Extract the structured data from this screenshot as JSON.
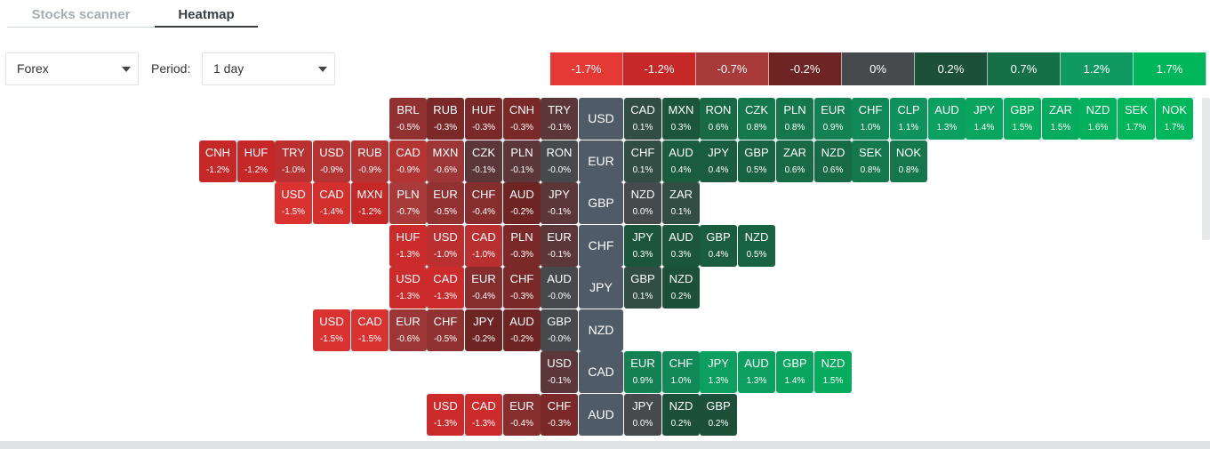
{
  "tabs": {
    "scanner": "Stocks scanner",
    "heatmap": "Heatmap"
  },
  "controls": {
    "market_value": "Forex",
    "period_label": "Period:",
    "period_value": "1 day"
  },
  "legend": [
    {
      "label": "-1.7%",
      "color": "#e53935"
    },
    {
      "label": "-1.2%",
      "color": "#c62828"
    },
    {
      "label": "-0.7%",
      "color": "#a83a3a"
    },
    {
      "label": "-0.2%",
      "color": "#6f2424"
    },
    {
      "label": "0%",
      "color": "#464a4d"
    },
    {
      "label": "0.2%",
      "color": "#1d5038"
    },
    {
      "label": "0.7%",
      "color": "#157047"
    },
    {
      "label": "1.2%",
      "color": "#0f9a62"
    },
    {
      "label": "1.7%",
      "color": "#00b65a"
    }
  ],
  "rows": [
    {
      "base": "USD",
      "neg": [
        {
          "c": "BRL",
          "p": "-0.5%"
        },
        {
          "c": "RUB",
          "p": "-0.3%"
        },
        {
          "c": "HUF",
          "p": "-0.3%"
        },
        {
          "c": "CNH",
          "p": "-0.3%"
        },
        {
          "c": "TRY",
          "p": "-0.1%"
        }
      ],
      "pos": [
        {
          "c": "CAD",
          "p": "0.1%"
        },
        {
          "c": "MXN",
          "p": "0.3%"
        },
        {
          "c": "RON",
          "p": "0.6%"
        },
        {
          "c": "CZK",
          "p": "0.8%"
        },
        {
          "c": "PLN",
          "p": "0.8%"
        },
        {
          "c": "EUR",
          "p": "0.9%"
        },
        {
          "c": "CHF",
          "p": "1.0%"
        },
        {
          "c": "CLP",
          "p": "1.1%"
        },
        {
          "c": "AUD",
          "p": "1.3%"
        },
        {
          "c": "JPY",
          "p": "1.4%"
        },
        {
          "c": "GBP",
          "p": "1.5%"
        },
        {
          "c": "ZAR",
          "p": "1.5%"
        },
        {
          "c": "NZD",
          "p": "1.6%"
        },
        {
          "c": "SEK",
          "p": "1.7%"
        },
        {
          "c": "NOK",
          "p": "1.7%"
        }
      ]
    },
    {
      "base": "EUR",
      "neg": [
        {
          "c": "CNH",
          "p": "-1.2%"
        },
        {
          "c": "HUF",
          "p": "-1.2%"
        },
        {
          "c": "TRY",
          "p": "-1.0%"
        },
        {
          "c": "USD",
          "p": "-0.9%"
        },
        {
          "c": "RUB",
          "p": "-0.9%"
        },
        {
          "c": "CAD",
          "p": "-0.9%"
        },
        {
          "c": "MXN",
          "p": "-0.6%"
        },
        {
          "c": "CZK",
          "p": "-0.1%"
        },
        {
          "c": "PLN",
          "p": "-0.1%"
        },
        {
          "c": "RON",
          "p": "-0.0%"
        }
      ],
      "pos": [
        {
          "c": "CHF",
          "p": "0.1%"
        },
        {
          "c": "AUD",
          "p": "0.4%"
        },
        {
          "c": "JPY",
          "p": "0.4%"
        },
        {
          "c": "GBP",
          "p": "0.5%"
        },
        {
          "c": "ZAR",
          "p": "0.6%"
        },
        {
          "c": "NZD",
          "p": "0.6%"
        },
        {
          "c": "SEK",
          "p": "0.8%"
        },
        {
          "c": "NOK",
          "p": "0.8%"
        }
      ]
    },
    {
      "base": "GBP",
      "neg": [
        {
          "c": "USD",
          "p": "-1.5%"
        },
        {
          "c": "CAD",
          "p": "-1.4%"
        },
        {
          "c": "MXN",
          "p": "-1.2%"
        },
        {
          "c": "PLN",
          "p": "-0.7%"
        },
        {
          "c": "EUR",
          "p": "-0.5%"
        },
        {
          "c": "CHF",
          "p": "-0.4%"
        },
        {
          "c": "AUD",
          "p": "-0.2%"
        },
        {
          "c": "JPY",
          "p": "-0.1%"
        }
      ],
      "pos": [
        {
          "c": "NZD",
          "p": "0.0%"
        },
        {
          "c": "ZAR",
          "p": "0.1%"
        }
      ]
    },
    {
      "base": "CHF",
      "neg": [
        {
          "c": "HUF",
          "p": "-1.3%"
        },
        {
          "c": "USD",
          "p": "-1.0%"
        },
        {
          "c": "CAD",
          "p": "-1.0%"
        },
        {
          "c": "PLN",
          "p": "-0.3%"
        },
        {
          "c": "EUR",
          "p": "-0.1%"
        }
      ],
      "pos": [
        {
          "c": "JPY",
          "p": "0.3%"
        },
        {
          "c": "AUD",
          "p": "0.3%"
        },
        {
          "c": "GBP",
          "p": "0.4%"
        },
        {
          "c": "NZD",
          "p": "0.5%"
        }
      ]
    },
    {
      "base": "JPY",
      "neg": [
        {
          "c": "USD",
          "p": "-1.3%"
        },
        {
          "c": "CAD",
          "p": "-1.3%"
        },
        {
          "c": "EUR",
          "p": "-0.4%"
        },
        {
          "c": "CHF",
          "p": "-0.3%"
        },
        {
          "c": "AUD",
          "p": "-0.0%"
        }
      ],
      "pos": [
        {
          "c": "GBP",
          "p": "0.1%"
        },
        {
          "c": "NZD",
          "p": "0.2%"
        }
      ]
    },
    {
      "base": "NZD",
      "neg": [
        {
          "c": "USD",
          "p": "-1.5%"
        },
        {
          "c": "CAD",
          "p": "-1.5%"
        },
        {
          "c": "EUR",
          "p": "-0.6%"
        },
        {
          "c": "CHF",
          "p": "-0.5%"
        },
        {
          "c": "JPY",
          "p": "-0.2%"
        },
        {
          "c": "AUD",
          "p": "-0.2%"
        },
        {
          "c": "GBP",
          "p": "-0.0%"
        }
      ],
      "pos": []
    },
    {
      "base": "CAD",
      "neg": [
        {
          "c": "USD",
          "p": "-0.1%"
        }
      ],
      "pos": [
        {
          "c": "EUR",
          "p": "0.9%"
        },
        {
          "c": "CHF",
          "p": "1.0%"
        },
        {
          "c": "JPY",
          "p": "1.3%"
        },
        {
          "c": "AUD",
          "p": "1.3%"
        },
        {
          "c": "GBP",
          "p": "1.4%"
        },
        {
          "c": "NZD",
          "p": "1.5%"
        }
      ]
    },
    {
      "base": "AUD",
      "neg": [
        {
          "c": "USD",
          "p": "-1.3%"
        },
        {
          "c": "CAD",
          "p": "-1.3%"
        },
        {
          "c": "EUR",
          "p": "-0.4%"
        },
        {
          "c": "CHF",
          "p": "-0.3%"
        }
      ],
      "pos": [
        {
          "c": "JPY",
          "p": "0.0%"
        },
        {
          "c": "NZD",
          "p": "0.2%"
        },
        {
          "c": "GBP",
          "p": "0.2%"
        }
      ]
    }
  ]
}
